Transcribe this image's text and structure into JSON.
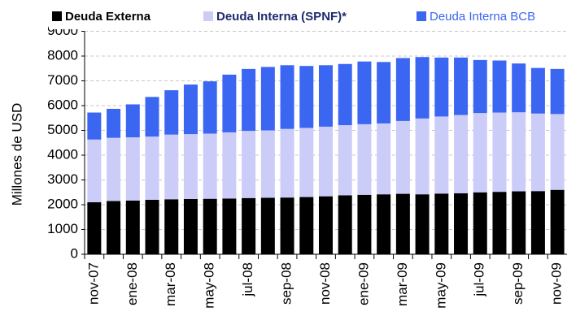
{
  "chart_data": {
    "type": "bar",
    "stacked": true,
    "ylabel": "Millones de USD",
    "categories": [
      "nov-07",
      null,
      "ene-08",
      null,
      "mar-08",
      null,
      "may-08",
      null,
      "jul-08",
      null,
      "sep-08",
      null,
      "nov-08",
      null,
      "ene-09",
      null,
      "mar-09",
      null,
      "may-09",
      null,
      "jul-09",
      null,
      "sep-09",
      null,
      "nov-09"
    ],
    "series": [
      {
        "name": "Deuda Externa",
        "color": "#000000",
        "values": [
          2100,
          2150,
          2170,
          2200,
          2220,
          2230,
          2240,
          2250,
          2270,
          2280,
          2290,
          2310,
          2340,
          2380,
          2400,
          2420,
          2440,
          2420,
          2450,
          2460,
          2500,
          2520,
          2540,
          2550,
          2600
        ]
      },
      {
        "name": "Deuda Interna (SPNF)*",
        "color": "#ccccf8",
        "values": [
          2530,
          2550,
          2550,
          2550,
          2610,
          2620,
          2630,
          2670,
          2710,
          2720,
          2770,
          2790,
          2810,
          2830,
          2850,
          2860,
          2940,
          3060,
          3110,
          3160,
          3200,
          3200,
          3190,
          3130,
          3060
        ]
      },
      {
        "name": "Deuda Interna BCB",
        "color": "#3a66f2",
        "values": [
          1090,
          1170,
          1330,
          1600,
          1790,
          2000,
          2110,
          2330,
          2500,
          2560,
          2570,
          2500,
          2480,
          2470,
          2530,
          2480,
          2540,
          2480,
          2380,
          2320,
          2140,
          2100,
          1970,
          1840,
          1820
        ]
      }
    ],
    "ylim": [
      0,
      9000
    ],
    "yticks": [
      0,
      1000,
      2000,
      3000,
      4000,
      5000,
      6000,
      7000,
      8000,
      9000
    ],
    "grid": true
  }
}
